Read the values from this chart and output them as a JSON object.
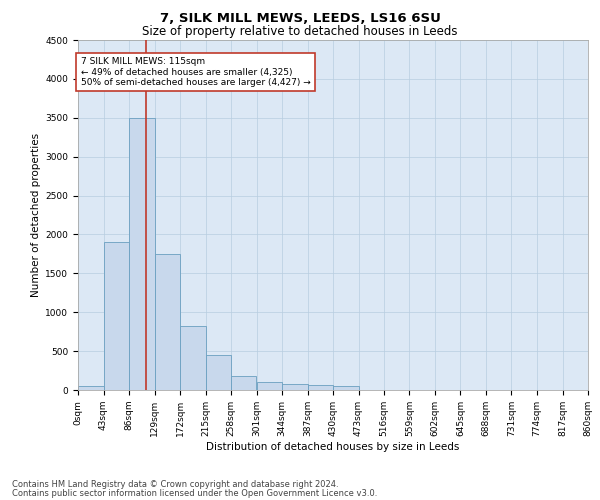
{
  "title1": "7, SILK MILL MEWS, LEEDS, LS16 6SU",
  "title2": "Size of property relative to detached houses in Leeds",
  "xlabel": "Distribution of detached houses by size in Leeds",
  "ylabel": "Number of detached properties",
  "bar_left_edges": [
    0,
    43,
    86,
    129,
    172,
    215,
    258,
    301,
    344,
    387,
    430,
    473,
    516,
    559,
    602,
    645,
    688,
    731,
    774,
    817
  ],
  "bar_heights": [
    50,
    1900,
    3500,
    1750,
    825,
    450,
    175,
    100,
    75,
    65,
    55,
    0,
    0,
    0,
    0,
    0,
    0,
    0,
    0,
    0
  ],
  "bin_width": 43,
  "bar_color": "#c8d8ec",
  "bar_edge_color": "#6a9fc0",
  "vline_x": 115,
  "vline_color": "#c0392b",
  "annotation_text": "7 SILK MILL MEWS: 115sqm\n← 49% of detached houses are smaller (4,325)\n50% of semi-detached houses are larger (4,427) →",
  "annotation_box_color": "#ffffff",
  "annotation_box_edge": "#c0392b",
  "ylim": [
    0,
    4500
  ],
  "yticks": [
    0,
    500,
    1000,
    1500,
    2000,
    2500,
    3000,
    3500,
    4000,
    4500
  ],
  "xtick_labels": [
    "0sqm",
    "43sqm",
    "86sqm",
    "129sqm",
    "172sqm",
    "215sqm",
    "258sqm",
    "301sqm",
    "344sqm",
    "387sqm",
    "430sqm",
    "473sqm",
    "516sqm",
    "559sqm",
    "602sqm",
    "645sqm",
    "688sqm",
    "731sqm",
    "774sqm",
    "817sqm",
    "860sqm"
  ],
  "footer1": "Contains HM Land Registry data © Crown copyright and database right 2024.",
  "footer2": "Contains public sector information licensed under the Open Government Licence v3.0.",
  "bg_color": "#ffffff",
  "plot_bg_color": "#dce8f5",
  "grid_color": "#b8cde0",
  "title1_fontsize": 9.5,
  "title2_fontsize": 8.5,
  "axis_label_fontsize": 7.5,
  "tick_fontsize": 6.5,
  "annotation_fontsize": 6.5,
  "footer_fontsize": 6.0
}
